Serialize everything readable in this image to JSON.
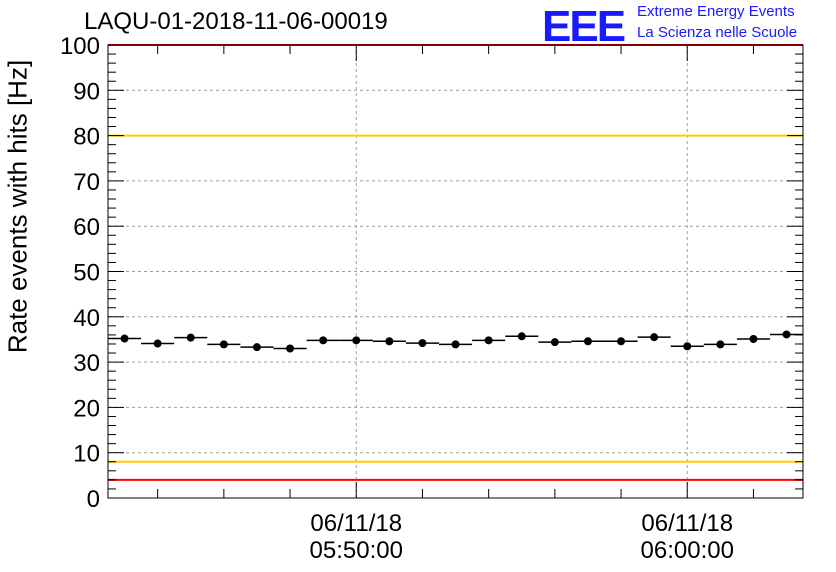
{
  "chart_data": {
    "type": "scatter",
    "title": "LAQU-01-2018-11-06-00019",
    "xlabel": "",
    "ylabel": "Rate events with hits [Hz]",
    "ylim": [
      0,
      100
    ],
    "yticks": [
      "0",
      "10",
      "20",
      "30",
      "40",
      "50",
      "60",
      "70",
      "80",
      "90",
      "100"
    ],
    "xticks": [
      {
        "date": "06/11/18",
        "time": "05:50:00",
        "index": 7
      },
      {
        "date": "06/11/18",
        "time": "06:00:00",
        "index": 17
      }
    ],
    "grid": true,
    "points": [
      35.2,
      34.1,
      35.4,
      33.9,
      33.3,
      33.0,
      34.8,
      34.8,
      34.6,
      34.2,
      33.9,
      34.8,
      35.7,
      34.4,
      34.6,
      34.6,
      35.5,
      33.5,
      33.9,
      35.1,
      36.1
    ],
    "reference_lines": [
      {
        "value": 100,
        "color": "#ff0000"
      },
      {
        "value": 80,
        "color": "#ffcc00"
      },
      {
        "value": 8,
        "color": "#ffcc00"
      },
      {
        "value": 4,
        "color": "#ff0000"
      }
    ]
  },
  "logo": {
    "mark": "EEE",
    "line1": "Extreme Energy Events",
    "line2": "La Scienza nelle Scuole",
    "color": "#1a1aff"
  }
}
